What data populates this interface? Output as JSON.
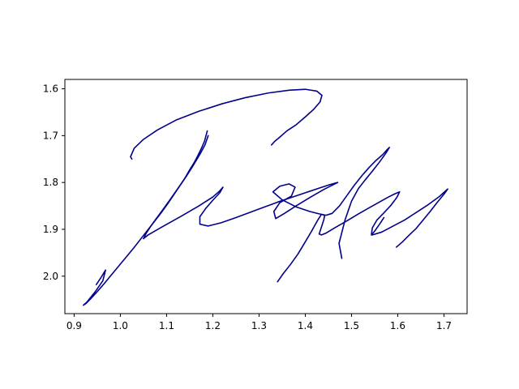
{
  "chart_data": {
    "type": "line",
    "title": "",
    "xlabel": "",
    "ylabel": "",
    "xlim": [
      0.88,
      1.75
    ],
    "ylim": [
      2.08,
      1.58
    ],
    "y_inverted": true,
    "grid": false,
    "legend": "none",
    "x_ticks": [
      0.9,
      1.0,
      1.1,
      1.2,
      1.3,
      1.4,
      1.5,
      1.6,
      1.7
    ],
    "x_tick_labels": [
      "0.9",
      "1.0",
      "1.1",
      "1.2",
      "1.3",
      "1.4",
      "1.5",
      "1.6",
      "1.7"
    ],
    "y_ticks": [
      1.6,
      1.7,
      1.8,
      1.9,
      2.0
    ],
    "y_tick_labels": [
      "1.6",
      "1.7",
      "1.8",
      "1.9",
      "2.0"
    ],
    "colors": {
      "line": "#00008b",
      "axes": "#000000",
      "background": "#ffffff"
    },
    "series": [
      {
        "x": [
          1.188,
          1.182,
          1.175,
          1.168,
          1.16,
          1.15,
          1.14,
          1.128,
          1.115,
          1.102,
          1.088,
          1.073,
          1.058,
          1.043,
          1.028,
          1.012,
          0.996,
          0.98,
          0.965,
          0.95,
          0.937,
          0.926,
          0.92,
          0.928,
          0.945,
          0.962,
          0.968,
          0.96,
          0.948
        ],
        "y": [
          1.69,
          1.712,
          1.728,
          1.742,
          1.757,
          1.773,
          1.79,
          1.808,
          1.827,
          1.846,
          1.865,
          1.884,
          1.903,
          1.922,
          1.941,
          1.96,
          1.979,
          1.998,
          2.016,
          2.033,
          2.047,
          2.058,
          2.062,
          2.055,
          2.034,
          2.01,
          1.987,
          2.0,
          2.018
        ]
      },
      {
        "x": [
          1.025,
          1.022,
          1.03,
          1.05,
          1.08,
          1.12,
          1.17,
          1.22,
          1.27,
          1.32,
          1.365,
          1.4,
          1.425,
          1.436,
          1.432,
          1.418,
          1.4,
          1.38,
          1.36,
          1.345,
          1.333,
          1.327
        ],
        "y": [
          1.75,
          1.745,
          1.727,
          1.708,
          1.688,
          1.667,
          1.648,
          1.632,
          1.619,
          1.609,
          1.603,
          1.601,
          1.605,
          1.614,
          1.628,
          1.644,
          1.66,
          1.677,
          1.69,
          1.703,
          1.713,
          1.72
        ]
      },
      {
        "x": [
          1.19,
          1.183,
          1.172,
          1.158,
          1.142,
          1.125,
          1.108,
          1.092,
          1.077,
          1.064,
          1.055,
          1.05,
          1.06,
          1.09,
          1.13,
          1.17,
          1.2,
          1.215,
          1.222,
          1.215,
          1.2,
          1.185,
          1.172,
          1.172,
          1.19,
          1.218,
          1.25,
          1.28,
          1.31,
          1.34,
          1.37,
          1.4,
          1.43,
          1.455,
          1.47
        ],
        "y": [
          1.7,
          1.72,
          1.74,
          1.763,
          1.788,
          1.812,
          1.836,
          1.858,
          1.878,
          1.896,
          1.91,
          1.92,
          1.912,
          1.895,
          1.873,
          1.85,
          1.831,
          1.818,
          1.81,
          1.822,
          1.838,
          1.855,
          1.873,
          1.889,
          1.893,
          1.886,
          1.875,
          1.864,
          1.853,
          1.842,
          1.832,
          1.822,
          1.812,
          1.804,
          1.8
        ]
      },
      {
        "x": [
          1.47,
          1.44,
          1.41,
          1.38,
          1.355,
          1.336,
          1.332,
          1.345,
          1.37,
          1.378,
          1.365,
          1.345,
          1.33,
          1.35,
          1.38,
          1.41,
          1.43,
          1.445,
          1.458,
          1.474,
          1.49,
          1.506,
          1.522,
          1.538,
          1.553,
          1.568,
          1.577,
          1.582,
          1.574,
          1.56,
          1.545,
          1.53,
          1.515,
          1.5,
          1.486,
          1.473,
          1.479
        ],
        "y": [
          1.8,
          1.815,
          1.832,
          1.85,
          1.866,
          1.877,
          1.862,
          1.843,
          1.829,
          1.81,
          1.803,
          1.808,
          1.82,
          1.837,
          1.852,
          1.862,
          1.867,
          1.87,
          1.866,
          1.85,
          1.828,
          1.806,
          1.786,
          1.768,
          1.753,
          1.74,
          1.73,
          1.725,
          1.738,
          1.757,
          1.776,
          1.794,
          1.813,
          1.84,
          1.88,
          1.93,
          1.962
        ]
      },
      {
        "x": [
          1.34,
          1.352,
          1.368,
          1.384,
          1.398,
          1.413,
          1.426,
          1.435,
          1.442,
          1.44,
          1.435,
          1.43,
          1.435,
          1.445,
          1.465,
          1.49,
          1.515,
          1.54,
          1.56,
          1.578,
          1.592,
          1.604,
          1.598,
          1.585,
          1.57,
          1.555,
          1.545,
          1.543,
          1.55,
          1.56,
          1.57
        ],
        "y": [
          2.012,
          1.995,
          1.975,
          1.953,
          1.93,
          1.905,
          1.882,
          1.868,
          1.87,
          1.88,
          1.895,
          1.91,
          1.912,
          1.908,
          1.896,
          1.882,
          1.867,
          1.853,
          1.842,
          1.832,
          1.825,
          1.82,
          1.832,
          1.849,
          1.865,
          1.88,
          1.897,
          1.912,
          1.904,
          1.89,
          1.875
        ]
      },
      {
        "x": [
          1.545,
          1.565,
          1.59,
          1.615,
          1.64,
          1.665,
          1.69,
          1.708,
          1.7,
          1.685,
          1.67,
          1.655,
          1.64,
          1.625,
          1.61,
          1.597
        ],
        "y": [
          1.912,
          1.906,
          1.893,
          1.88,
          1.864,
          1.848,
          1.83,
          1.814,
          1.825,
          1.843,
          1.862,
          1.88,
          1.898,
          1.912,
          1.927,
          1.938
        ]
      }
    ]
  }
}
